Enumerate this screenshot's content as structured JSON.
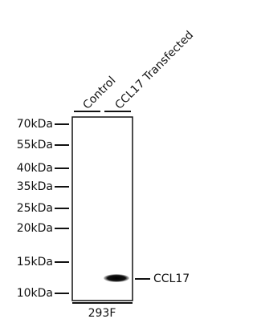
{
  "lanes": [
    "Control",
    "CCL17 Transfected"
  ],
  "markers": [
    "70kDa",
    "55kDa",
    "40kDa",
    "35kDa",
    "25kDa",
    "20kDa",
    "15kDa",
    "10kDa"
  ],
  "band_label": "CCL17",
  "cell_line": "293F"
}
